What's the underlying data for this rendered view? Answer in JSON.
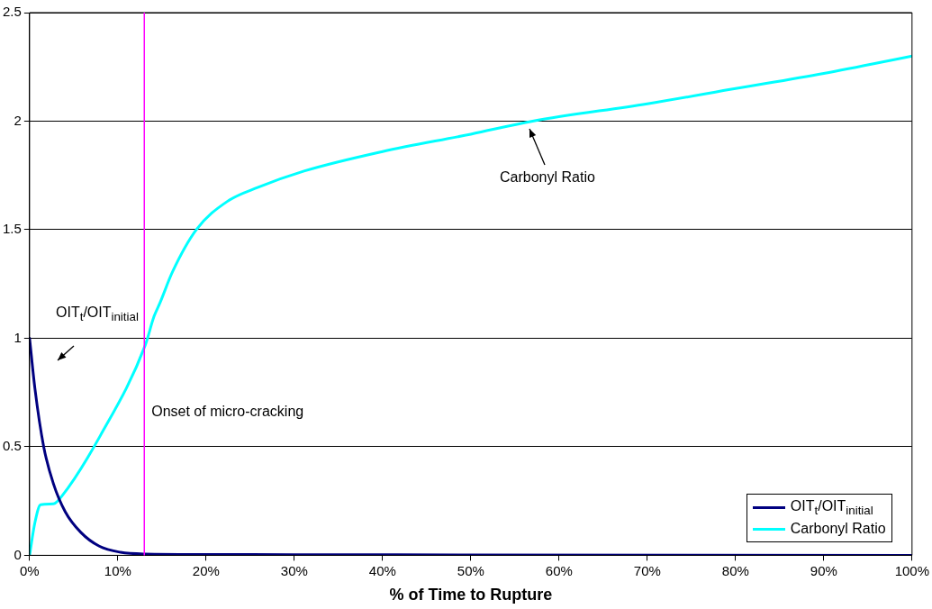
{
  "chart_data": {
    "type": "line",
    "xlabel": "% of Time to Rupture",
    "xlim": [
      0,
      100
    ],
    "xticks": [
      {
        "value": 0,
        "label": "0%"
      },
      {
        "value": 10,
        "label": "10%"
      },
      {
        "value": 20,
        "label": "20%"
      },
      {
        "value": 30,
        "label": "30%"
      },
      {
        "value": 40,
        "label": "40%"
      },
      {
        "value": 50,
        "label": "50%"
      },
      {
        "value": 60,
        "label": "60%"
      },
      {
        "value": 70,
        "label": "70%"
      },
      {
        "value": 80,
        "label": "80%"
      },
      {
        "value": 90,
        "label": "90%"
      },
      {
        "value": 100,
        "label": "100%"
      }
    ],
    "ylim": [
      0,
      2.5
    ],
    "yticks": [
      0,
      0.5,
      1,
      1.5,
      2,
      2.5
    ],
    "grid": "y",
    "legend": "bottom right",
    "marker": "none",
    "line_style": "solid",
    "series": [
      {
        "name": "OIT$_{t}$/OIT$_{initial}$",
        "color": "#000080",
        "x": [
          0,
          0.6,
          1.6,
          2.7,
          4.05,
          5.8,
          7.9,
          10.3,
          13.1,
          20,
          30,
          50,
          100
        ],
        "values": [
          1.0,
          0.77,
          0.5,
          0.33,
          0.2,
          0.106,
          0.042,
          0.014,
          0.006,
          0.004,
          0.003,
          0.002,
          0
        ]
      },
      {
        "name": "Carbonyl Ratio",
        "color": "#00ffff",
        "x": [
          0,
          0.6,
          1.25,
          2.7,
          3.7,
          8,
          13.1,
          14.1,
          14.8,
          16.2,
          18.9,
          22.4,
          25.9,
          31.1,
          40,
          50,
          57,
          70,
          80,
          90,
          100
        ],
        "values": [
          0,
          0.15,
          0.233,
          0.237,
          0.275,
          0.55,
          0.967,
          1.1,
          1.165,
          1.306,
          1.5,
          1.63,
          1.695,
          1.77,
          1.86,
          1.94,
          2.0,
          2.08,
          2.15,
          2.22,
          2.3
        ]
      }
    ],
    "ref_lines": [
      {
        "axis": "x",
        "value": 13,
        "label": "Onset of micro-cracking",
        "color": "#ff00ff"
      }
    ],
    "annotations": [
      "OIT$_{t}$/OIT$_{initial}$",
      "Carbonyl Ratio"
    ]
  }
}
